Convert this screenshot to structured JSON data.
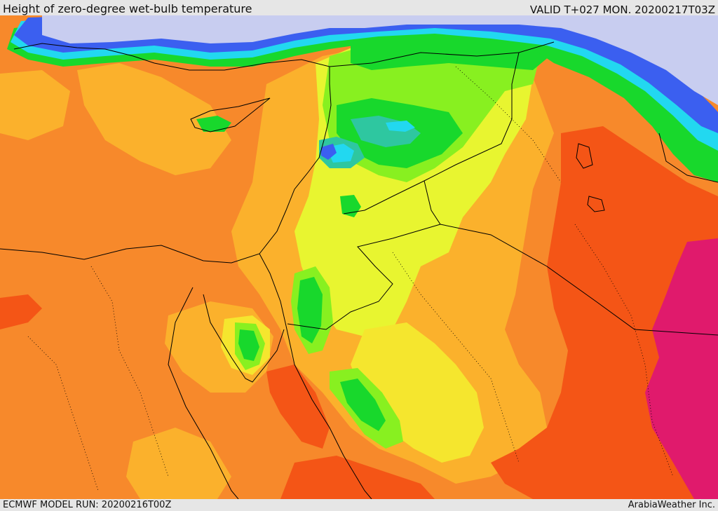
{
  "header": {
    "title": "Height of zero-degree wet-bulb temperature",
    "valid": "VALID T+027 MON. 20200217T03Z"
  },
  "footer": {
    "model_run": "ECMWF MODEL RUN: 20200216T00Z",
    "brand": "ArabiaWeather Inc."
  },
  "palette": {
    "sea_low": "#c8cdf0",
    "blue": "#3b5ff0",
    "cyan": "#22d8f0",
    "teal": "#2ec7a0",
    "green": "#18d82c",
    "light_green": "#88f020",
    "yellow_green": "#e8f530",
    "yellow": "#f5e62e",
    "light_orange": "#fbb12c",
    "orange": "#f7892b",
    "red_orange": "#f45516",
    "magenta": "#e01a6c",
    "border": "#000000"
  }
}
